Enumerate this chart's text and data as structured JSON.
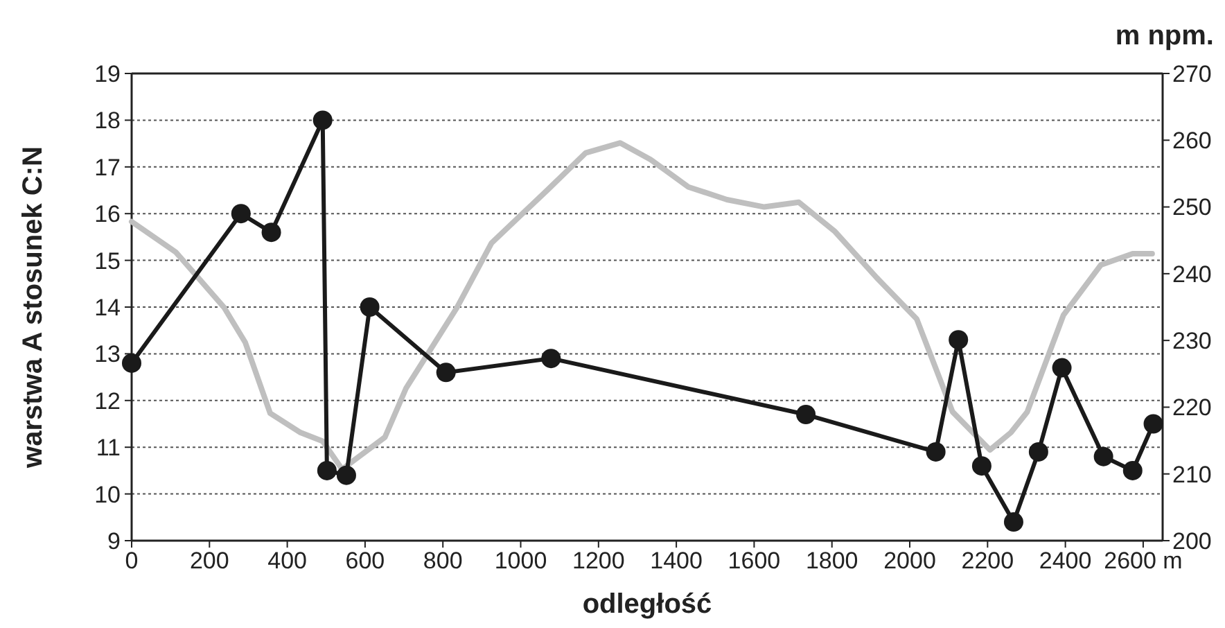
{
  "chart_data": {
    "type": "line",
    "xlabel": "odległość",
    "ylabel": "warstwa A stosunek C:N",
    "y2label": "m npm.",
    "xlim": [
      0,
      2650
    ],
    "xticks": [
      0,
      200,
      400,
      600,
      800,
      1000,
      1200,
      1400,
      1600,
      1800,
      2000,
      2200,
      2400,
      {
        "value": 2600,
        "label": "2600 m"
      }
    ],
    "ylim": [
      9,
      19
    ],
    "yticks": [
      9,
      10,
      11,
      12,
      13,
      14,
      15,
      16,
      17,
      18,
      19
    ],
    "y2lim": [
      200,
      270
    ],
    "y2ticks": [
      200,
      210,
      220,
      230,
      240,
      250,
      260,
      270
    ],
    "grid": "y",
    "series": [
      {
        "color": "#bfbfbf",
        "axis": "y2",
        "marker": "none",
        "x": [
          0,
          114,
          171,
          238,
          292,
          356,
          434,
          491,
          541,
          651,
          705,
          836,
          925,
          1068,
          1167,
          1256,
          1334,
          1431,
          1530,
          1626,
          1715,
          1808,
          1915,
          2018,
          2110,
          2206,
          2260,
          2302,
          2395,
          2491,
          2573,
          2623
        ],
        "values": [
          247.8,
          243.2,
          239.4,
          234.9,
          229.7,
          219.1,
          216.2,
          214.9,
          210.7,
          215.5,
          222.8,
          234.9,
          244.6,
          252.5,
          258.1,
          259.6,
          257.1,
          253.0,
          251.1,
          250.0,
          250.7,
          246.3,
          239.4,
          233.2,
          219.3,
          213.6,
          216.2,
          219.3,
          233.8,
          241.3,
          243.0,
          243.0
        ]
      },
      {
        "color": "#1a1a1a",
        "marker": "circle",
        "x": [
          0,
          281,
          359,
          491,
          502,
          552,
          612,
          808,
          1078,
          1733,
          2067,
          2125,
          2185,
          2267,
          2331,
          2391,
          2498,
          2573,
          2626
        ],
        "values": [
          12.8,
          16.0,
          15.6,
          18.0,
          10.5,
          10.4,
          14.0,
          12.6,
          12.9,
          11.7,
          10.9,
          13.3,
          10.6,
          9.4,
          10.9,
          12.7,
          10.8,
          10.5,
          11.5
        ]
      }
    ]
  }
}
